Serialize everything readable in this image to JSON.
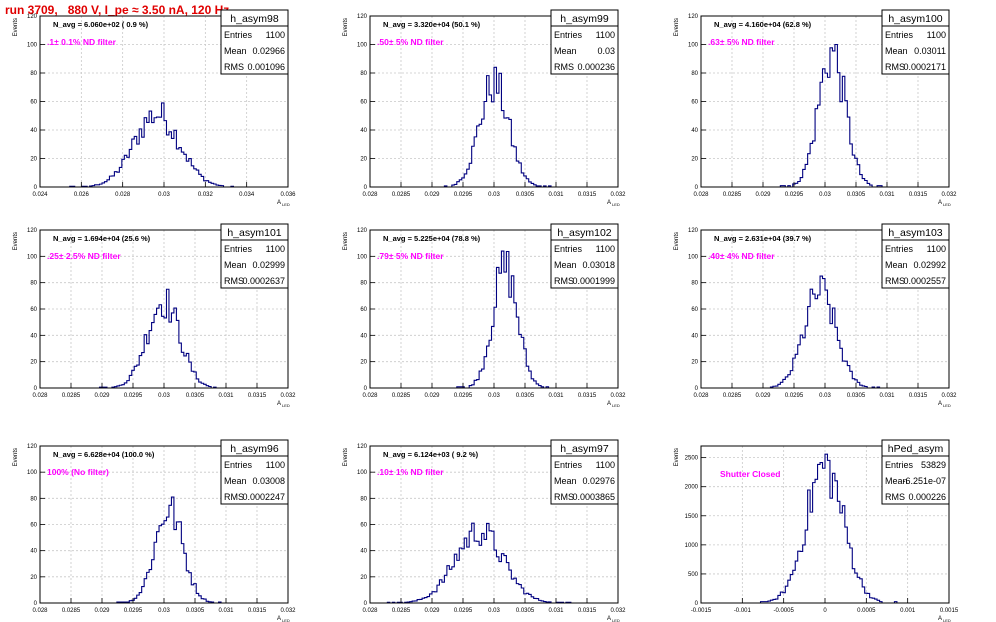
{
  "page": {
    "title": "run 3709,   880 V, I_pe ≈ 3.50 nA, 120 Hz"
  },
  "colors": {
    "title": "#e00000",
    "histogram": "#000080",
    "filter_label": "#ff00ff",
    "grid": "#c8c8c8",
    "frame": "#000000"
  },
  "stats_labels": {
    "entries": "Entries",
    "mean": "Mean",
    "rms": "RMS"
  },
  "axis_labels": {
    "y": "Events",
    "x_main": "A",
    "x_sub": "LED"
  },
  "chart_data": [
    {
      "type": "bar",
      "name": "h_asym98",
      "annotation": "N_avg = 6.060e+02 ( 0.9 %)",
      "filter": ".1± 0.1% ND filter",
      "stats": {
        "entries": "1100",
        "mean": "0.02966",
        "rms": "0.001096"
      },
      "xlim": [
        0.024,
        0.036
      ],
      "ylim": [
        0,
        120
      ],
      "xticks": [
        "0.024",
        "0.026",
        "0.028",
        "0.03",
        "0.032",
        "0.034",
        "0.036"
      ],
      "yticks": [
        "0",
        "20",
        "40",
        "60",
        "80",
        "100",
        "120"
      ],
      "peak": 59,
      "center": 0.02966,
      "sigma": 0.001096,
      "grid": true
    },
    {
      "type": "bar",
      "name": "h_asym99",
      "annotation": "N_avg = 3.320e+04 (50.1 %)",
      "filter": ".50± 5% ND filter",
      "stats": {
        "entries": "1100",
        "mean": "0.03",
        "rms": "0.000236"
      },
      "xlim": [
        0.028,
        0.032
      ],
      "ylim": [
        0,
        120
      ],
      "xticks": [
        "0.028",
        "0.0285",
        "0.029",
        "0.0295",
        "0.03",
        "0.0305",
        "0.031",
        "0.0315",
        "0.032"
      ],
      "yticks": [
        "0",
        "20",
        "40",
        "60",
        "80",
        "100",
        "120"
      ],
      "peak": 84,
      "center": 0.03,
      "sigma": 0.000236,
      "grid": true
    },
    {
      "type": "bar",
      "name": "h_asym100",
      "annotation": "N_avg = 4.160e+04 (62.8 %)",
      "filter": ".63± 5% ND filter",
      "stats": {
        "entries": "1100",
        "mean": "0.03011",
        "rms": "0.0002171"
      },
      "xlim": [
        0.028,
        0.032
      ],
      "ylim": [
        0,
        120
      ],
      "xticks": [
        "0.028",
        "0.0285",
        "0.029",
        "0.0295",
        "0.03",
        "0.0305",
        "0.031",
        "0.0315",
        "0.032"
      ],
      "yticks": [
        "0",
        "20",
        "40",
        "60",
        "80",
        "100",
        "120"
      ],
      "peak": 100,
      "center": 0.03011,
      "sigma": 0.0002171,
      "grid": true
    },
    {
      "type": "bar",
      "name": "h_asym101",
      "annotation": "N_avg = 1.694e+04 (25.6 %)",
      "filter": ".25± 2.5% ND filter",
      "stats": {
        "entries": "1100",
        "mean": "0.02999",
        "rms": "0.0002637"
      },
      "xlim": [
        0.028,
        0.032
      ],
      "ylim": [
        0,
        120
      ],
      "xticks": [
        "0.028",
        "0.0285",
        "0.029",
        "0.0295",
        "0.03",
        "0.0305",
        "0.031",
        "0.0315",
        "0.032"
      ],
      "yticks": [
        "0",
        "20",
        "40",
        "60",
        "80",
        "100",
        "120"
      ],
      "peak": 75,
      "center": 0.02999,
      "sigma": 0.0002637,
      "grid": true
    },
    {
      "type": "bar",
      "name": "h_asym102",
      "annotation": "N_avg = 5.225e+04 (78.8 %)",
      "filter": ".79± 5% ND filter",
      "stats": {
        "entries": "1100",
        "mean": "0.03018",
        "rms": "0.0001999"
      },
      "xlim": [
        0.028,
        0.032
      ],
      "ylim": [
        0,
        120
      ],
      "xticks": [
        "0.028",
        "0.0285",
        "0.029",
        "0.0295",
        "0.03",
        "0.0305",
        "0.031",
        "0.0315",
        "0.032"
      ],
      "yticks": [
        "0",
        "20",
        "40",
        "60",
        "80",
        "100",
        "120"
      ],
      "peak": 104,
      "center": 0.03018,
      "sigma": 0.0001999,
      "grid": true
    },
    {
      "type": "bar",
      "name": "h_asym103",
      "annotation": "N_avg = 2.631e+04 (39.7 %)",
      "filter": ".40± 4% ND filter",
      "stats": {
        "entries": "1100",
        "mean": "0.02992",
        "rms": "0.0002557"
      },
      "xlim": [
        0.028,
        0.032
      ],
      "ylim": [
        0,
        120
      ],
      "xticks": [
        "0.028",
        "0.0285",
        "0.029",
        "0.0295",
        "0.03",
        "0.0305",
        "0.031",
        "0.0315",
        "0.032"
      ],
      "yticks": [
        "0",
        "20",
        "40",
        "60",
        "80",
        "100",
        "120"
      ],
      "peak": 85,
      "center": 0.02992,
      "sigma": 0.0002557,
      "grid": true
    },
    {
      "type": "bar",
      "name": "h_asym96",
      "annotation": "N_avg = 6.628e+04 (100.0 %)",
      "filter": "100% (No filter)",
      "stats": {
        "entries": "1100",
        "mean": "0.03008",
        "rms": "0.0002247"
      },
      "xlim": [
        0.028,
        0.032
      ],
      "ylim": [
        0,
        120
      ],
      "xticks": [
        "0.028",
        "0.0285",
        "0.029",
        "0.0295",
        "0.03",
        "0.0305",
        "0.031",
        "0.0315",
        "0.032"
      ],
      "yticks": [
        "0",
        "20",
        "40",
        "60",
        "80",
        "100",
        "120"
      ],
      "peak": 81,
      "center": 0.03008,
      "sigma": 0.0002247,
      "grid": true
    },
    {
      "type": "bar",
      "name": "h_asym97",
      "annotation": "N_avg = 6.124e+03 ( 9.2 %)",
      "filter": ".10± 1% ND filter",
      "stats": {
        "entries": "1100",
        "mean": "0.02976",
        "rms": "0.0003865"
      },
      "xlim": [
        0.028,
        0.032
      ],
      "ylim": [
        0,
        120
      ],
      "xticks": [
        "0.028",
        "0.0285",
        "0.029",
        "0.0295",
        "0.03",
        "0.0305",
        "0.031",
        "0.0315",
        "0.032"
      ],
      "yticks": [
        "0",
        "20",
        "40",
        "60",
        "80",
        "100",
        "120"
      ],
      "peak": 61,
      "center": 0.02976,
      "sigma": 0.0003865,
      "grid": true
    },
    {
      "type": "bar",
      "name": "hPed_asym",
      "annotation": "",
      "filter": "Shutter Closed",
      "stats": {
        "entries": "53829",
        "mean": "-6.251e-07",
        "rms": "0.000226"
      },
      "xlim": [
        -0.0015,
        0.0015
      ],
      "ylim": [
        0,
        2700
      ],
      "xticks": [
        "-0.0015",
        "-0.001",
        "-0.0005",
        "0",
        "0.0005",
        "0.001",
        "0.0015"
      ],
      "yticks": [
        "0",
        "500",
        "1000",
        "1500",
        "2000",
        "2500"
      ],
      "peak": 2560,
      "center": -6.251e-07,
      "sigma": 0.000226,
      "grid": true
    }
  ]
}
